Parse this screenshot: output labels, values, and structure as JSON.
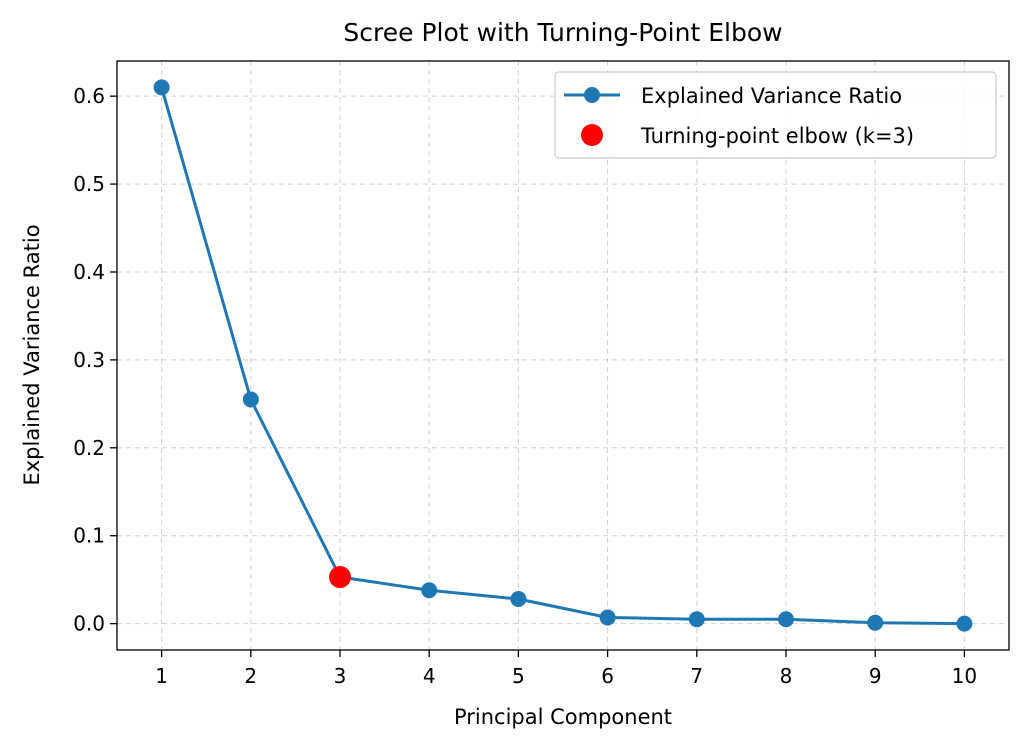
{
  "chart_data": {
    "type": "line",
    "title": "Scree Plot with Turning-Point Elbow",
    "xlabel": "Principal Component",
    "ylabel": "Explained Variance Ratio",
    "x": [
      1,
      2,
      3,
      4,
      5,
      6,
      7,
      8,
      9,
      10
    ],
    "xlim": [
      0.5,
      10.5
    ],
    "ylim": [
      -0.03,
      0.64
    ],
    "xticks": [
      "1",
      "2",
      "3",
      "4",
      "5",
      "6",
      "7",
      "8",
      "9",
      "10"
    ],
    "yticks": [
      "0.0",
      "0.1",
      "0.2",
      "0.3",
      "0.4",
      "0.5",
      "0.6"
    ],
    "grid": true,
    "legend_position": "top-right",
    "series": [
      {
        "name": "Explained Variance Ratio",
        "color": "#1f77b4",
        "values": [
          0.61,
          0.255,
          0.053,
          0.038,
          0.028,
          0.007,
          0.005,
          0.005,
          0.001,
          0.0
        ]
      }
    ],
    "highlight": {
      "name": "Turning-point elbow (k=3)",
      "color": "#ff0000",
      "x": 3,
      "y": 0.053
    }
  }
}
